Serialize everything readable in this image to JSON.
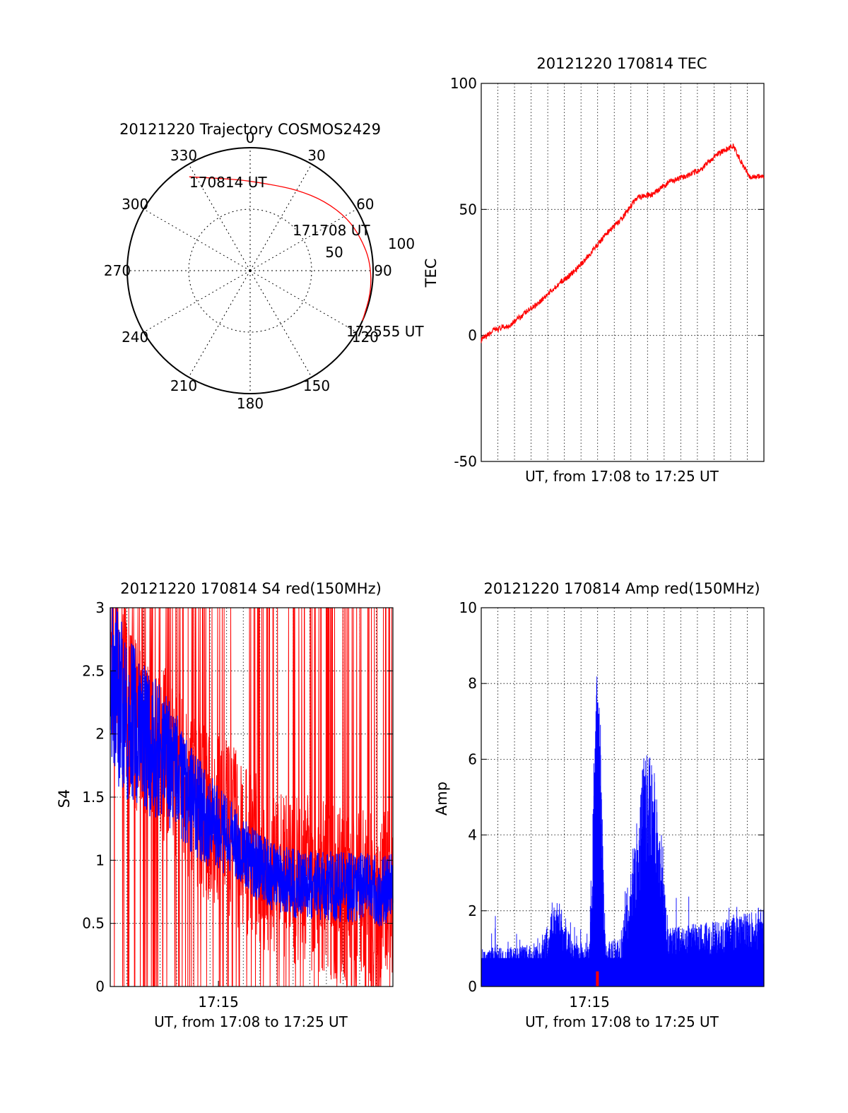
{
  "chart_data": [
    {
      "id": "trajectory",
      "type": "polar",
      "title": "20121220 Trajectory COSMOS2429",
      "angle_labels": [
        "0",
        "30",
        "60",
        "90",
        "120",
        "150",
        "180",
        "210",
        "240",
        "270",
        "300",
        "330"
      ],
      "radial_labels": [
        "50",
        "100"
      ],
      "rlim": [
        0,
        100
      ],
      "colors": {
        "track": "#ff0000",
        "axis": "#000000"
      },
      "track": {
        "points": [
          {
            "azimuth": 327,
            "elevation_r": 91
          },
          {
            "azimuth": 340,
            "elevation_r": 80
          },
          {
            "azimuth": 355,
            "elevation_r": 74
          },
          {
            "azimuth": 13,
            "elevation_r": 72
          },
          {
            "azimuth": 30,
            "elevation_r": 76
          },
          {
            "azimuth": 47,
            "elevation_r": 83
          },
          {
            "azimuth": 62,
            "elevation_r": 90
          },
          {
            "azimuth": 74,
            "elevation_r": 94
          },
          {
            "azimuth": 86,
            "elevation_r": 98
          },
          {
            "azimuth": 100,
            "elevation_r": 100
          },
          {
            "azimuth": 114,
            "elevation_r": 100
          }
        ],
        "labels": [
          {
            "text": "170814 UT",
            "azimuth": 336,
            "elevation_r": 82
          },
          {
            "text": "171708 UT",
            "azimuth": 66,
            "elevation_r": 97
          },
          {
            "text": "172555 UT",
            "azimuth": 112,
            "elevation_r": 122
          }
        ]
      }
    },
    {
      "id": "tec",
      "type": "line",
      "title": "20121220 170814 TEC",
      "xlabel": "UT, from 17:08 to 17:25 UT",
      "ylabel": "TEC",
      "xlim": [
        "17:08:14",
        "17:25:55"
      ],
      "ylim": [
        -50,
        100
      ],
      "yticks": [
        "100",
        "50",
        "0",
        "-50"
      ],
      "grid": "dotted",
      "series": [
        {
          "color": "#ff0000",
          "x": [
            "17:08:14",
            "17:09:00",
            "17:10:00",
            "17:11:00",
            "17:12:00",
            "17:13:00",
            "17:14:00",
            "17:15:00",
            "17:16:00",
            "17:17:00",
            "17:18:00",
            "17:19:00",
            "17:20:00",
            "17:21:00",
            "17:22:00",
            "17:23:00",
            "17:24:00",
            "17:25:00",
            "17:25:55"
          ],
          "y": [
            -2,
            2,
            4,
            9,
            14,
            20,
            25,
            32,
            40,
            46,
            55,
            56,
            61,
            63,
            66,
            72,
            75,
            63,
            63
          ]
        }
      ]
    },
    {
      "id": "s4",
      "type": "line",
      "title": "20121220 170814 S4 red(150MHz)",
      "xlabel": "UT, from 17:08 to 17:25 UT",
      "ylabel": "S4",
      "xlim": [
        "17:08:14",
        "17:25:55"
      ],
      "ylim": [
        0,
        3
      ],
      "yticks": [
        "3",
        "2.5",
        "2",
        "1.5",
        "1",
        "0.5",
        "0"
      ],
      "xticks": [
        "17:15"
      ],
      "grid": "dotted",
      "series": [
        {
          "color": "#ff0000",
          "x": [
            "17:08:14",
            "17:09:00",
            "17:10:00",
            "17:11:00",
            "17:12:00",
            "17:13:00",
            "17:14:00",
            "17:15:00",
            "17:16:00",
            "17:17:00",
            "17:18:00",
            "17:19:00",
            "17:20:00",
            "17:21:00",
            "17:22:00",
            "17:23:00",
            "17:24:00",
            "17:25:00",
            "17:25:55"
          ],
          "y": [
            2.6,
            2.4,
            2.0,
            1.9,
            1.8,
            1.5,
            1.4,
            1.3,
            1.2,
            1.05,
            0.95,
            0.9,
            0.85,
            0.8,
            0.75,
            0.7,
            0.7,
            0.65,
            0.75
          ]
        },
        {
          "color": "#0000ff",
          "x": [
            "17:08:14",
            "17:09:00",
            "17:10:00",
            "17:11:00",
            "17:12:00",
            "17:13:00",
            "17:14:00",
            "17:15:00",
            "17:16:00",
            "17:17:00",
            "17:18:00",
            "17:19:00",
            "17:20:00",
            "17:21:00",
            "17:22:00",
            "17:23:00",
            "17:24:00",
            "17:25:00",
            "17:25:55"
          ],
          "y": [
            2.4,
            2.2,
            2.0,
            1.9,
            1.75,
            1.55,
            1.35,
            1.25,
            1.15,
            1.0,
            0.9,
            0.85,
            0.8,
            0.8,
            0.8,
            0.78,
            0.8,
            0.75,
            0.8
          ]
        }
      ]
    },
    {
      "id": "amp",
      "type": "line",
      "title": "20121220 170814 Amp red(150MHz)",
      "xlabel": "UT, from 17:08 to 17:25 UT",
      "ylabel": "Amp",
      "xlim": [
        "17:08:14",
        "17:25:55"
      ],
      "ylim": [
        0,
        10
      ],
      "yticks": [
        "10",
        "8",
        "6",
        "4",
        "2",
        "0"
      ],
      "xticks": [
        "17:15"
      ],
      "grid": "dotted",
      "series": [
        {
          "color": "#0000ff",
          "x": [
            "17:08:14",
            "17:10:00",
            "17:12:00",
            "17:13:00",
            "17:14:00",
            "17:15:00",
            "17:15:30",
            "17:16:00",
            "17:17:00",
            "17:18:00",
            "17:18:30",
            "17:19:00",
            "17:20:00",
            "17:22:00",
            "17:24:00",
            "17:25:55"
          ],
          "y": [
            0.8,
            0.8,
            0.9,
            1.8,
            0.9,
            0.9,
            7.5,
            0.9,
            1.0,
            3.6,
            5.0,
            4.6,
            1.2,
            1.3,
            1.4,
            1.7
          ]
        },
        {
          "color": "#ff0000",
          "x": [
            "17:15:30"
          ],
          "y": [
            0.4
          ]
        }
      ]
    }
  ]
}
